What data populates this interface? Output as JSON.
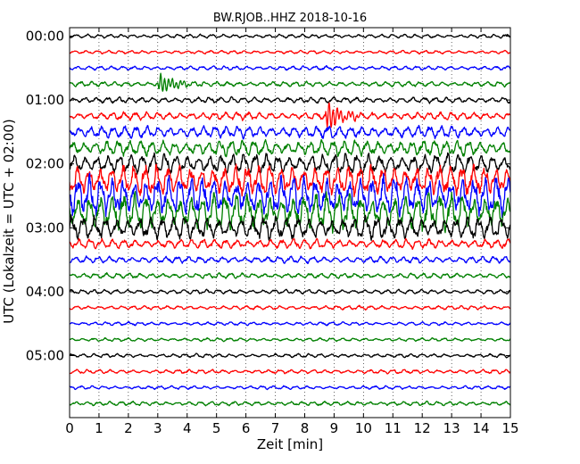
{
  "chart_data": {
    "type": "line",
    "title": "BW.RJOB..HHZ 2018-10-16",
    "xlabel": "Zeit  [min]",
    "ylabel": "UTC (Lokalzeit = UTC + 02:00)",
    "xlim": [
      0,
      15
    ],
    "x_ticks": [
      "0",
      "1",
      "2",
      "3",
      "4",
      "5",
      "6",
      "7",
      "8",
      "9",
      "10",
      "11",
      "12",
      "13",
      "14",
      "15"
    ],
    "y_tick_labels": [
      "00:00",
      "01:00",
      "02:00",
      "03:00",
      "04:00",
      "05:00"
    ],
    "trace_interval_minutes": 15,
    "trace_colors": [
      "#000000",
      "#ff0000",
      "#0000ff",
      "#008000"
    ],
    "grid": "vertical dotted lines at each minute",
    "series": [
      {
        "start": "00:00",
        "amplitude": 0.15,
        "event": null
      },
      {
        "start": "00:15",
        "amplitude": 0.15,
        "event": null
      },
      {
        "start": "00:30",
        "amplitude": 0.17,
        "event": null
      },
      {
        "start": "00:45",
        "amplitude": 0.22,
        "event": {
          "start_min": 3.0,
          "end_min": 4.6,
          "peak": 1.2
        }
      },
      {
        "start": "01:00",
        "amplitude": 0.25,
        "event": null
      },
      {
        "start": "01:15",
        "amplitude": 0.35,
        "event": {
          "start_min": 8.7,
          "end_min": 10.3,
          "peak": 1.6
        }
      },
      {
        "start": "01:30",
        "amplitude": 0.55,
        "event": null
      },
      {
        "start": "01:45",
        "amplitude": 0.75,
        "event": null
      },
      {
        "start": "02:00",
        "amplitude": 0.95,
        "event": null
      },
      {
        "start": "02:15",
        "amplitude": 1.25,
        "event": null
      },
      {
        "start": "02:30",
        "amplitude": 1.6,
        "event": null
      },
      {
        "start": "02:45",
        "amplitude": 1.8,
        "event": null
      },
      {
        "start": "03:00",
        "amplitude": 1.0,
        "event": null
      },
      {
        "start": "03:15",
        "amplitude": 0.45,
        "event": null
      },
      {
        "start": "03:30",
        "amplitude": 0.28,
        "event": null
      },
      {
        "start": "03:45",
        "amplitude": 0.22,
        "event": null
      },
      {
        "start": "04:00",
        "amplitude": 0.2,
        "event": null
      },
      {
        "start": "04:15",
        "amplitude": 0.18,
        "event": null
      },
      {
        "start": "04:30",
        "amplitude": 0.17,
        "event": null
      },
      {
        "start": "04:45",
        "amplitude": 0.17,
        "event": null
      },
      {
        "start": "05:00",
        "amplitude": 0.17,
        "event": null
      },
      {
        "start": "05:15",
        "amplitude": 0.17,
        "event": null
      },
      {
        "start": "05:30",
        "amplitude": 0.17,
        "event": null
      },
      {
        "start": "05:45",
        "amplitude": 0.17,
        "event": null
      }
    ]
  }
}
